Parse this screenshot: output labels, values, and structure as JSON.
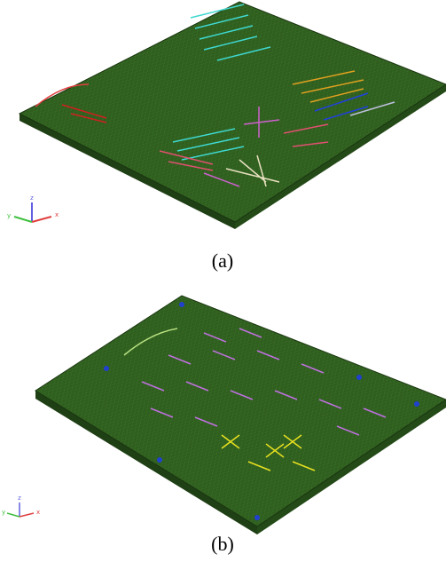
{
  "panels": [
    {
      "caption": "(a)",
      "axes": {
        "z": "z",
        "y": "y",
        "x": "x"
      }
    },
    {
      "caption": "(b)",
      "axes": {
        "z": "z",
        "y": "y",
        "x": "x"
      }
    }
  ]
}
